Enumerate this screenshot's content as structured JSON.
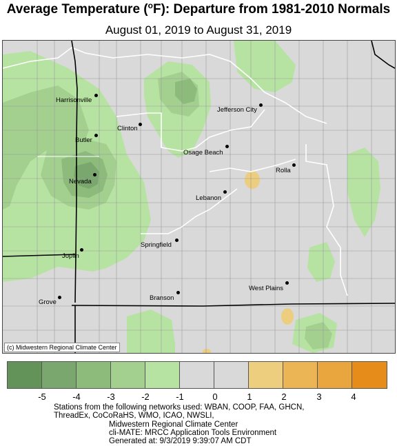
{
  "header": {
    "title_prefix": "Average Temperature (",
    "title_degree": "o",
    "title_suffix": "F): Departure from 1981-2010 Normals",
    "subtitle": "August 01, 2019 to August 31, 2019"
  },
  "map": {
    "copyright": "(c) Midwestern Regional Climate Center",
    "cities": [
      {
        "name": "Harrisonville"
      },
      {
        "name": "Jefferson City"
      },
      {
        "name": "Clinton"
      },
      {
        "name": "Butler"
      },
      {
        "name": "Osage Beach"
      },
      {
        "name": "Rolla"
      },
      {
        "name": "Nevada"
      },
      {
        "name": "Lebanon"
      },
      {
        "name": "Springfield"
      },
      {
        "name": "Joplin"
      },
      {
        "name": "West Plains"
      },
      {
        "name": "Grove"
      },
      {
        "name": "Branson"
      }
    ]
  },
  "legend": {
    "colors": [
      "#64935a",
      "#7aa76e",
      "#8dbb7c",
      "#a3d08f",
      "#b7e3a2",
      "#d9d9d9",
      "#d9d9d9",
      "#edce7f",
      "#ebb555",
      "#e9a63f",
      "#e68c1a"
    ],
    "ticks": [
      "-5",
      "-4",
      "-3",
      "-2",
      "-1",
      "0",
      "1",
      "2",
      "3",
      "4"
    ]
  },
  "footer": {
    "line1": "Stations from the following networks used: WBAN, COOP, FAA, GHCN,",
    "line2": "ThreadEx, CoCoRaHS, WMO, ICAO, NWSLI,",
    "line3": "Midwestern Regional Climate Center",
    "line4": "cli-MATE: MRCC Application Tools Environment",
    "line5": "Generated at: 9/3/2019 9:39:07 AM CDT"
  }
}
